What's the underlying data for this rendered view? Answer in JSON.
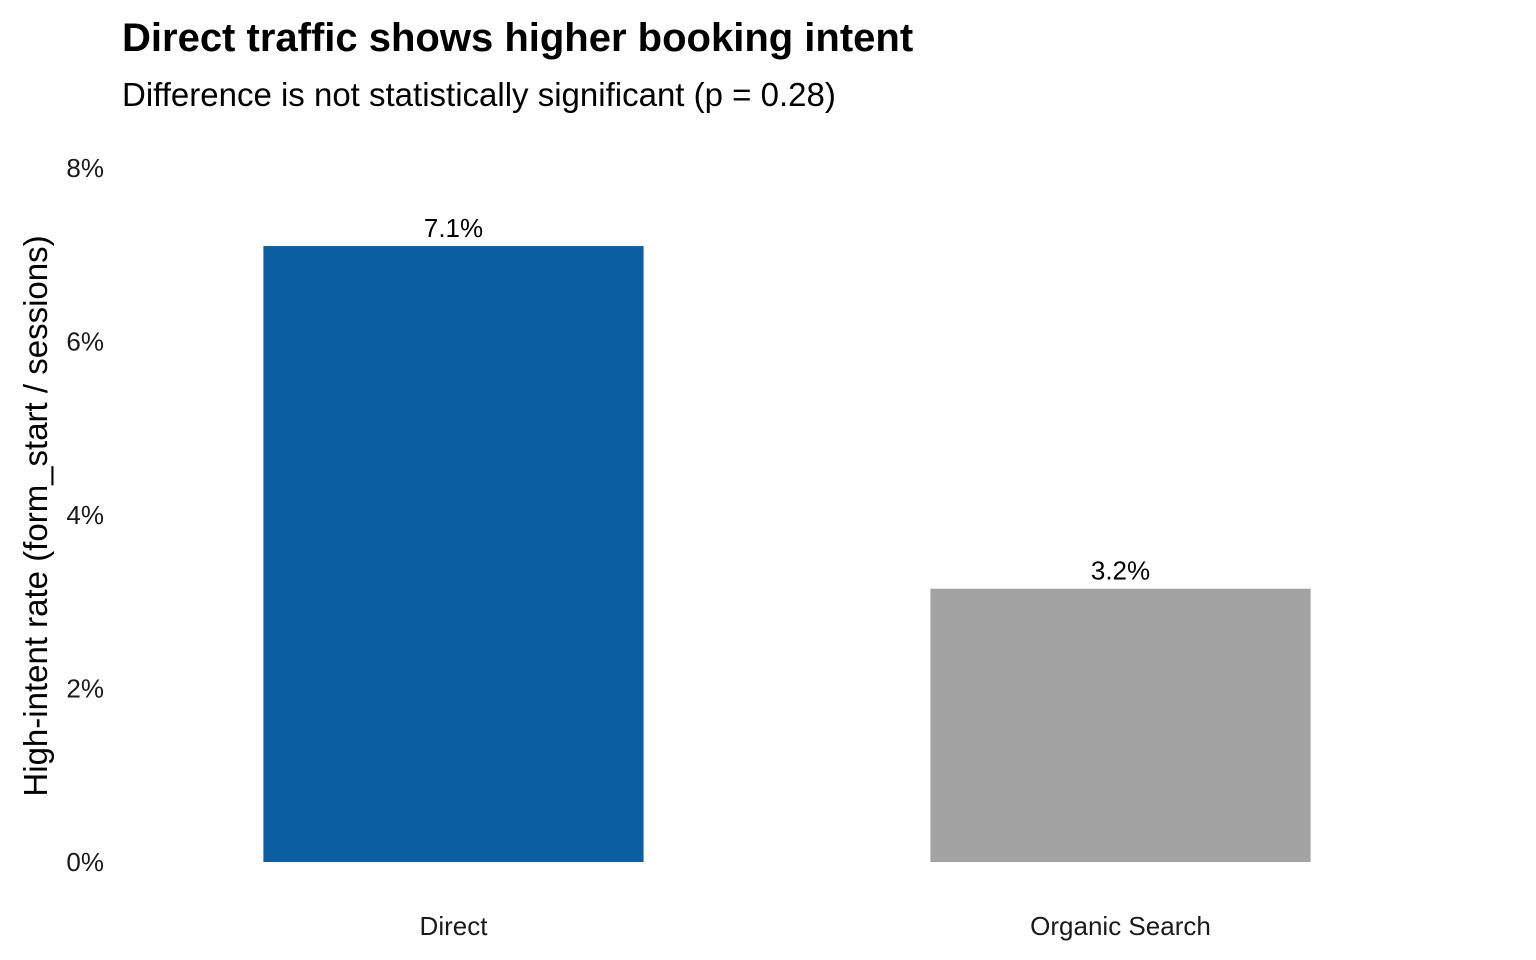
{
  "chart_data": {
    "type": "bar",
    "title": "Direct traffic shows higher booking intent",
    "subtitle": "Difference is not statistically significant (p = 0.28)",
    "xlabel": "",
    "ylabel": "High-intent rate (form_start / sessions)",
    "categories": [
      "Direct",
      "Organic Search"
    ],
    "values": [
      7.1,
      3.15
    ],
    "data_labels": [
      "7.1%",
      "3.2%"
    ],
    "colors": [
      "#0b5ea1",
      "#a3a3a3"
    ],
    "ylim": [
      0,
      8
    ],
    "yticks": [
      0,
      2,
      4,
      6,
      8
    ],
    "ytick_labels": [
      "0%",
      "2%",
      "4%",
      "6%",
      "8%"
    ],
    "grid": false,
    "legend": "none"
  }
}
